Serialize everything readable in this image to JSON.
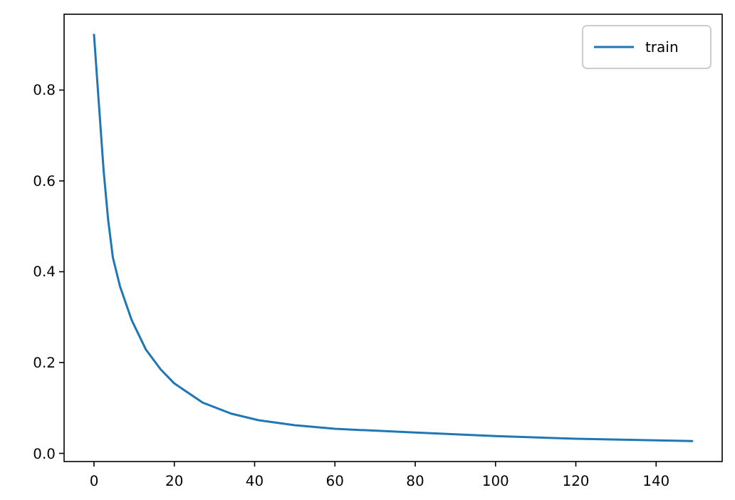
{
  "chart_data": {
    "type": "line",
    "x": [
      0,
      1.2,
      2.4,
      3.5,
      4.7,
      6.5,
      9.4,
      12.9,
      16.5,
      20,
      27,
      34,
      41,
      50,
      60,
      80,
      100,
      120,
      149
    ],
    "series": [
      {
        "name": "train",
        "color": "#1f77b4",
        "values": [
          0.922,
          0.771,
          0.622,
          0.516,
          0.431,
          0.367,
          0.293,
          0.229,
          0.186,
          0.154,
          0.112,
          0.088,
          0.073,
          0.062,
          0.054,
          0.046,
          0.038,
          0.032,
          0.027
        ]
      }
    ],
    "xlim": [
      -7.45,
      156.45
    ],
    "ylim": [
      -0.018,
      0.967
    ],
    "xticks": [
      0,
      20,
      40,
      60,
      80,
      100,
      120,
      140
    ],
    "yticks": [
      {
        "value": 0,
        "label": "0.0"
      },
      {
        "value": 0.2,
        "label": "0.2"
      },
      {
        "value": 0.4,
        "label": "0.4"
      },
      {
        "value": 0.6,
        "label": "0.6"
      },
      {
        "value": 0.8,
        "label": "0.8"
      }
    ],
    "legend": "top right",
    "grid": false,
    "marker": "none",
    "line_style": "solid"
  }
}
